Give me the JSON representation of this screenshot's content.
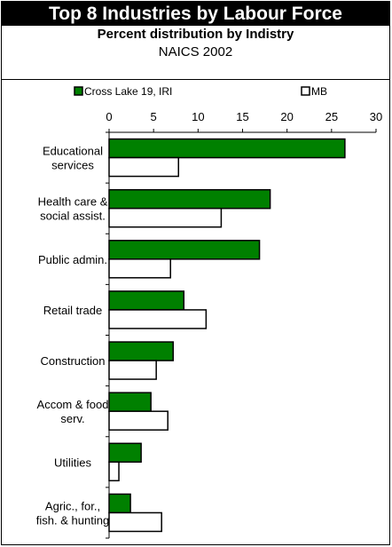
{
  "header": {
    "title": "Top 8 Industries by Labour Force",
    "subtitle": "Percent distribution by Indistry",
    "subtitle2": "NAICS 2002"
  },
  "colors": {
    "series1": "#008000",
    "series2": "#ffffff",
    "outline": "#000000"
  },
  "chart_data": {
    "type": "bar",
    "orientation": "horizontal",
    "title": "Top 8 Industries by Labour Force",
    "subtitle": "Percent distribution by Indistry",
    "xlim": [
      0,
      30
    ],
    "xticks": [
      0,
      5,
      10,
      15,
      20,
      25,
      30
    ],
    "grid": false,
    "legend_position": "top",
    "categories": [
      [
        "Educational",
        "services"
      ],
      [
        "Health care &",
        "social assist."
      ],
      [
        "Public admin."
      ],
      [
        "Retail trade"
      ],
      [
        "Construction"
      ],
      [
        "Accom & food",
        "serv."
      ],
      [
        "Utilities"
      ],
      [
        "Agric., for.,",
        "fish. & hunting"
      ]
    ],
    "series": [
      {
        "name": "Cross Lake 19, IRI",
        "color": "#008000",
        "values": [
          26.5,
          18.1,
          16.9,
          8.4,
          7.2,
          4.7,
          3.6,
          2.4
        ]
      },
      {
        "name": "MB",
        "color": "#ffffff",
        "values": [
          7.8,
          12.6,
          6.9,
          10.9,
          5.3,
          6.6,
          1.1,
          5.9
        ]
      }
    ]
  }
}
